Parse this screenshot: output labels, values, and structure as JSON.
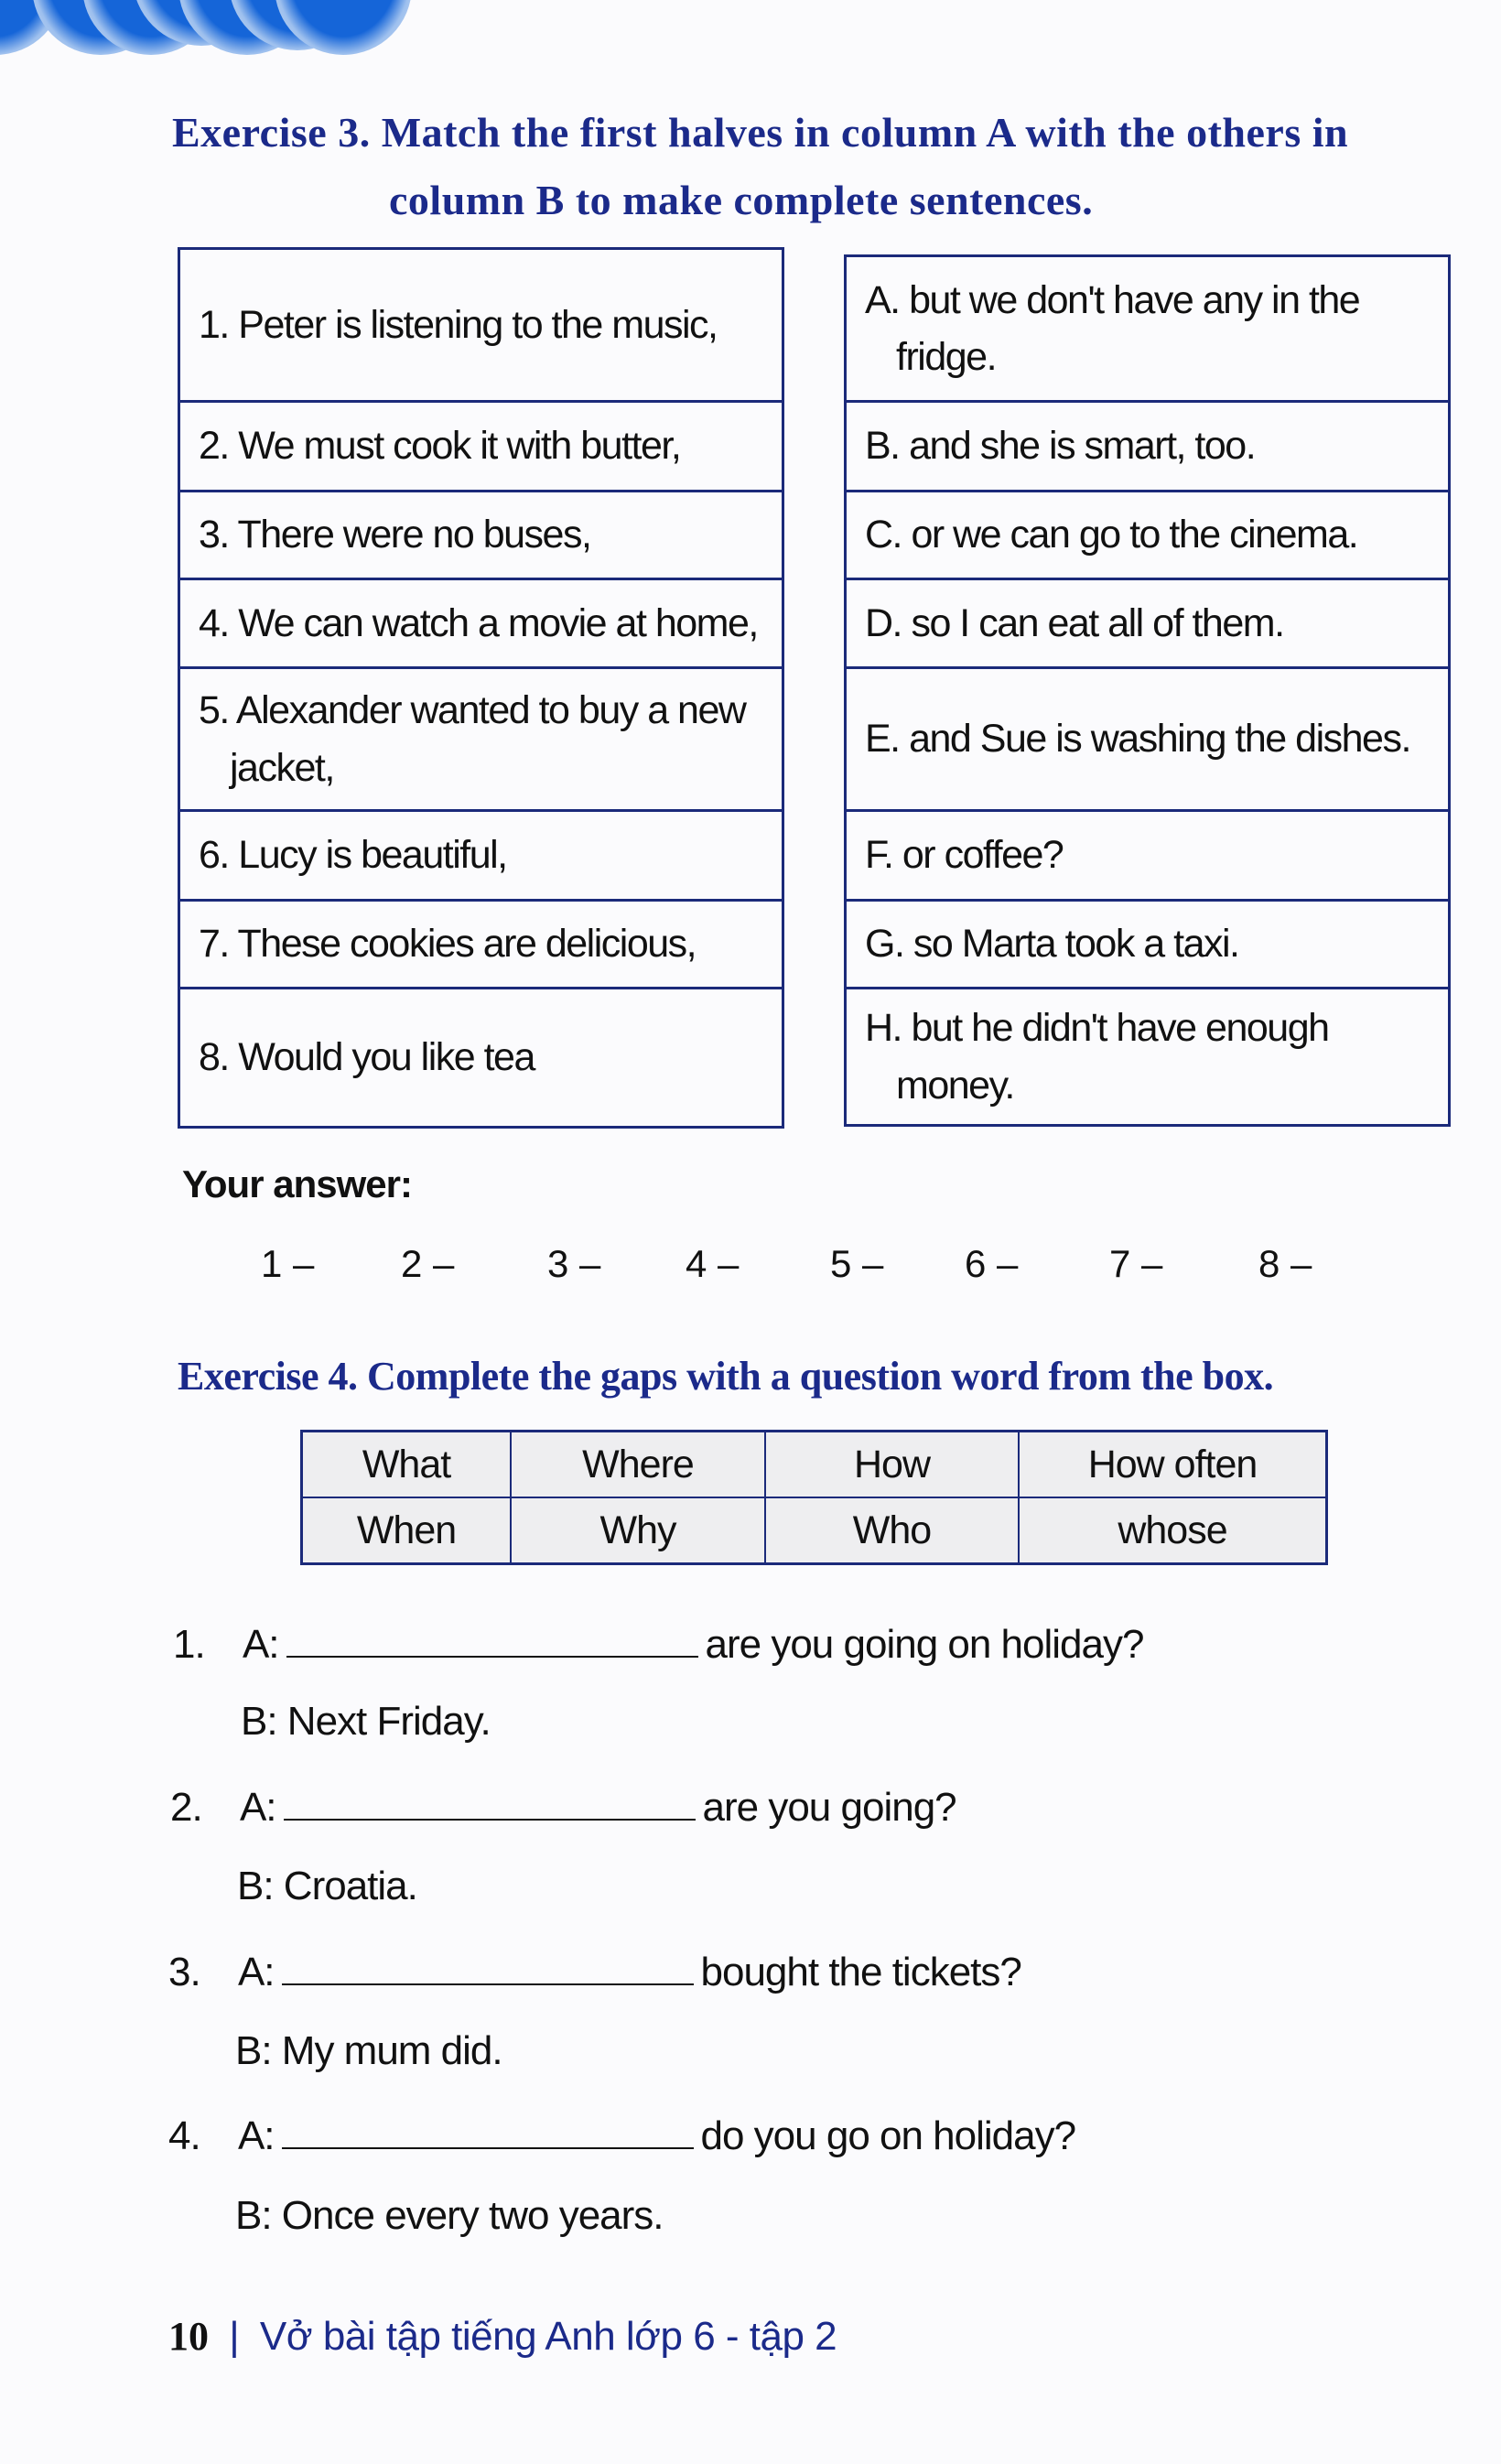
{
  "exercise3": {
    "title_line1": "Exercise 3. Match the first halves in column A with the others in",
    "title_line2": "column B to make complete sentences.",
    "column_a": [
      "1. Peter is listening to the music,",
      "2. We must cook it with butter,",
      "3. There were no buses,",
      "4. We can watch a movie at home,",
      "5. Alexander wanted to buy a new jacket,",
      "6. Lucy is beautiful,",
      "7. These cookies are delicious,",
      "8. Would you like tea"
    ],
    "column_b": [
      "A. but we don't have any in the fridge.",
      "B. and she is smart, too.",
      "C. or we can go to the cinema.",
      "D. so I can eat all of them.",
      "E. and Sue is washing the dishes.",
      "F. or coffee?",
      "G. so Marta took a taxi.",
      "H. but he didn't have enough money."
    ],
    "answer_label": "Your answer:",
    "answers": [
      "1 –",
      "2 –",
      "3 –",
      "4 –",
      "5 –",
      "6 –",
      "7 –",
      "8 –"
    ]
  },
  "exercise4": {
    "title": "Exercise 4. Complete the gaps with a question word from the box.",
    "box": [
      [
        "What",
        "Where",
        "How",
        "How often"
      ],
      [
        "When",
        "Why",
        "Who",
        "whose"
      ]
    ],
    "questions": [
      {
        "num": "1.",
        "a_label": "A:",
        "a_rest": "are you going on holiday?",
        "b": "B: Next Friday."
      },
      {
        "num": "2.",
        "a_label": "A:",
        "a_rest": "are you going?",
        "b": "B: Croatia."
      },
      {
        "num": "3.",
        "a_label": "A:",
        "a_rest": "bought the tickets?",
        "b": "B: My mum did."
      },
      {
        "num": "4.",
        "a_label": "A:",
        "a_rest": "do you go on holiday?",
        "b": "B: Once every two years."
      }
    ]
  },
  "footer": {
    "page": "10",
    "book": "Vở bài tập tiếng Anh lớp 6 - tập 2"
  },
  "colors": {
    "title": "#1b2a8a",
    "border": "#1b2a7a",
    "header_blue": "#1565d8"
  }
}
